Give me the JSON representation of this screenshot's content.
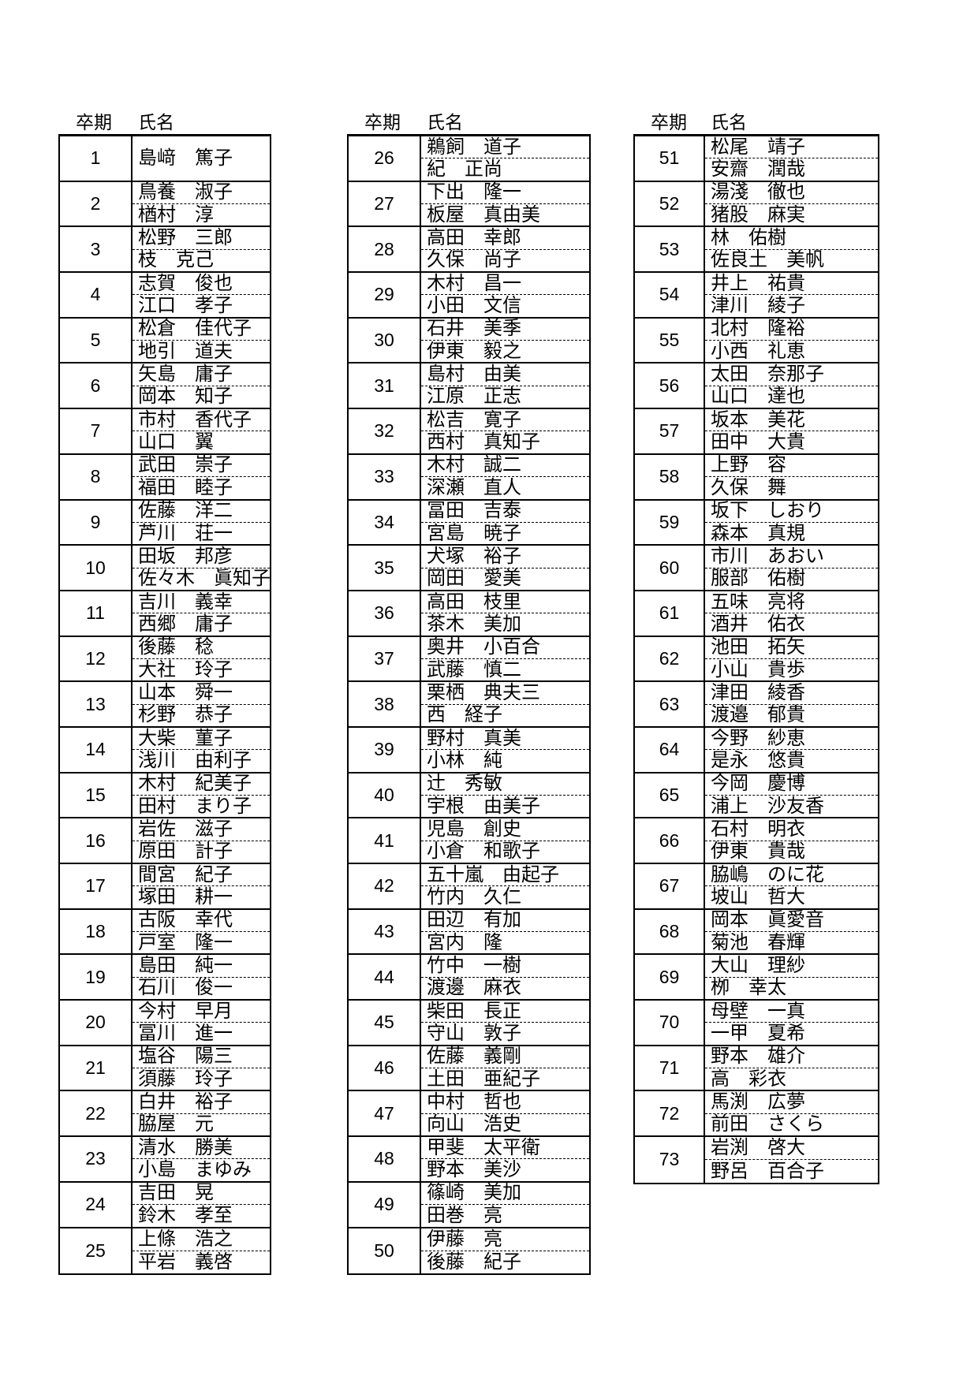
{
  "document": {
    "headers": {
      "period": "卒期",
      "name": "氏名"
    },
    "tables": [
      {
        "rows": [
          {
            "period": "1",
            "names": [
              "島﨑　篤子"
            ]
          },
          {
            "period": "2",
            "names": [
              "鳥養　淑子",
              "楢村　淳"
            ]
          },
          {
            "period": "3",
            "names": [
              "松野　三郎",
              "枝　克己"
            ]
          },
          {
            "period": "4",
            "names": [
              "志賀　俊也",
              "江口　孝子"
            ]
          },
          {
            "period": "5",
            "names": [
              "松倉　佳代子",
              "地引　道夫"
            ]
          },
          {
            "period": "6",
            "names": [
              "矢島　庸子",
              "岡本　知子"
            ]
          },
          {
            "period": "7",
            "names": [
              "市村　香代子",
              "山口　翼"
            ]
          },
          {
            "period": "8",
            "names": [
              "武田　崇子",
              "福田　睦子"
            ]
          },
          {
            "period": "9",
            "names": [
              "佐藤　洋二",
              "芦川　荘一"
            ]
          },
          {
            "period": "10",
            "names": [
              "田坂　邦彦",
              "佐々木　眞知子"
            ]
          },
          {
            "period": "11",
            "names": [
              "吉川　義幸",
              "西郷　庸子"
            ]
          },
          {
            "period": "12",
            "names": [
              "後藤　稔",
              "大社　玲子"
            ]
          },
          {
            "period": "13",
            "names": [
              "山本　舜一",
              "杉野　恭子"
            ]
          },
          {
            "period": "14",
            "names": [
              "大柴　菫子",
              "浅川　由利子"
            ]
          },
          {
            "period": "15",
            "names": [
              "木村　紀美子",
              "田村　まり子"
            ]
          },
          {
            "period": "16",
            "names": [
              "岩佐　滋子",
              "原田　計子"
            ]
          },
          {
            "period": "17",
            "names": [
              "間宮　紀子",
              "塚田　耕一"
            ]
          },
          {
            "period": "18",
            "names": [
              "古阪　幸代",
              "戸室　隆一"
            ]
          },
          {
            "period": "19",
            "names": [
              "島田　純一",
              "石川　俊一"
            ]
          },
          {
            "period": "20",
            "names": [
              "今村　早月",
              "冨川　進一"
            ]
          },
          {
            "period": "21",
            "names": [
              "塩谷　陽三",
              "須藤　玲子"
            ]
          },
          {
            "period": "22",
            "names": [
              "白井　裕子",
              "脇屋　元"
            ]
          },
          {
            "period": "23",
            "names": [
              "清水　勝美",
              "小島　まゆみ"
            ]
          },
          {
            "period": "24",
            "names": [
              "吉田　晃",
              "鈴木　孝至"
            ]
          },
          {
            "period": "25",
            "names": [
              "上條　浩之",
              "平岩　義啓"
            ]
          }
        ]
      },
      {
        "rows": [
          {
            "period": "26",
            "names": [
              "鵜飼　道子",
              "紀　正尚"
            ]
          },
          {
            "period": "27",
            "names": [
              "下出　隆一",
              "板屋　真由美"
            ]
          },
          {
            "period": "28",
            "names": [
              "高田　幸郎",
              "久保　尚子"
            ]
          },
          {
            "period": "29",
            "names": [
              "木村　昌一",
              "小田　文信"
            ]
          },
          {
            "period": "30",
            "names": [
              "石井　美季",
              "伊東　毅之"
            ]
          },
          {
            "period": "31",
            "names": [
              "島村　由美",
              "江原　正志"
            ]
          },
          {
            "period": "32",
            "names": [
              "松吉　寛子",
              "西村　真知子"
            ]
          },
          {
            "period": "33",
            "names": [
              "木村　誠二",
              "深瀬　直人"
            ]
          },
          {
            "period": "34",
            "names": [
              "冨田　吉泰",
              "宮島　暁子"
            ]
          },
          {
            "period": "35",
            "names": [
              "犬塚　裕子",
              "岡田　愛美"
            ]
          },
          {
            "period": "36",
            "names": [
              "高田　枝里",
              "茶木　美加"
            ]
          },
          {
            "period": "37",
            "names": [
              "奥井　小百合",
              "武藤　慎二"
            ]
          },
          {
            "period": "38",
            "names": [
              "栗栖　典夫三",
              "西　経子"
            ]
          },
          {
            "period": "39",
            "names": [
              "野村　真美",
              "小林　純"
            ]
          },
          {
            "period": "40",
            "names": [
              "辻　秀敏",
              "宇根　由美子"
            ]
          },
          {
            "period": "41",
            "names": [
              "児島　創史",
              "小倉　和歌子"
            ]
          },
          {
            "period": "42",
            "names": [
              "五十嵐　由起子",
              "竹内　久仁"
            ]
          },
          {
            "period": "43",
            "names": [
              "田辺　有加",
              "宮内　隆"
            ]
          },
          {
            "period": "44",
            "names": [
              "竹中　一樹",
              "渡邊　麻衣"
            ]
          },
          {
            "period": "45",
            "names": [
              "柴田　長正",
              "守山　敦子"
            ]
          },
          {
            "period": "46",
            "names": [
              "佐藤　義剛",
              "土田　亜紀子"
            ]
          },
          {
            "period": "47",
            "names": [
              "中村　哲也",
              "向山　浩史"
            ]
          },
          {
            "period": "48",
            "names": [
              "甲斐　太平衛",
              "野本　美沙"
            ]
          },
          {
            "period": "49",
            "names": [
              "篠崎　美加",
              "田巻　亮"
            ]
          },
          {
            "period": "50",
            "names": [
              "伊藤　亮",
              "後藤　紀子"
            ]
          }
        ]
      },
      {
        "rows": [
          {
            "period": "51",
            "names": [
              "松尾　靖子",
              "安齋　潤哉"
            ]
          },
          {
            "period": "52",
            "names": [
              "湯淺　徹也",
              "猪股　麻実"
            ]
          },
          {
            "period": "53",
            "names": [
              "林　佑樹",
              "佐良土　美帆"
            ]
          },
          {
            "period": "54",
            "names": [
              "井上　祐貴",
              "津川　綾子"
            ]
          },
          {
            "period": "55",
            "names": [
              "北村　隆裕",
              "小西　礼恵"
            ]
          },
          {
            "period": "56",
            "names": [
              "太田　奈那子",
              "山口　達也"
            ]
          },
          {
            "period": "57",
            "names": [
              "坂本　美花",
              "田中　大貴"
            ]
          },
          {
            "period": "58",
            "names": [
              "上野　容",
              "久保　舞"
            ]
          },
          {
            "period": "59",
            "names": [
              "坂下　しおり",
              "森本　真規"
            ]
          },
          {
            "period": "60",
            "names": [
              "市川　あおい",
              "服部　佑樹"
            ]
          },
          {
            "period": "61",
            "names": [
              "五味　亮将",
              "酒井　佑衣"
            ]
          },
          {
            "period": "62",
            "names": [
              "池田　拓矢",
              "小山　貴歩"
            ]
          },
          {
            "period": "63",
            "names": [
              "津田　綾香",
              "渡邉　郁貴"
            ]
          },
          {
            "period": "64",
            "names": [
              "今野　紗恵",
              "是永　悠貴"
            ]
          },
          {
            "period": "65",
            "names": [
              "今岡　慶博",
              "浦上　沙友香"
            ]
          },
          {
            "period": "66",
            "names": [
              "石村　明衣",
              "伊東　貴哉"
            ]
          },
          {
            "period": "67",
            "names": [
              "脇嶋　のに花",
              "坡山　哲大"
            ]
          },
          {
            "period": "68",
            "names": [
              "岡本　眞愛音",
              "菊池　春輝"
            ]
          },
          {
            "period": "69",
            "names": [
              "大山　理紗",
              "栁　幸太"
            ]
          },
          {
            "period": "70",
            "names": [
              "母壁　一真",
              "一甲　夏希"
            ]
          },
          {
            "period": "71",
            "names": [
              "野本　雄介",
              "高　彩衣"
            ]
          },
          {
            "period": "72",
            "names": [
              "馬渕　広夢",
              "前田　さくら"
            ]
          },
          {
            "period": "73",
            "names": [
              "岩渕　啓大",
              "野呂　百合子"
            ]
          }
        ]
      }
    ]
  }
}
